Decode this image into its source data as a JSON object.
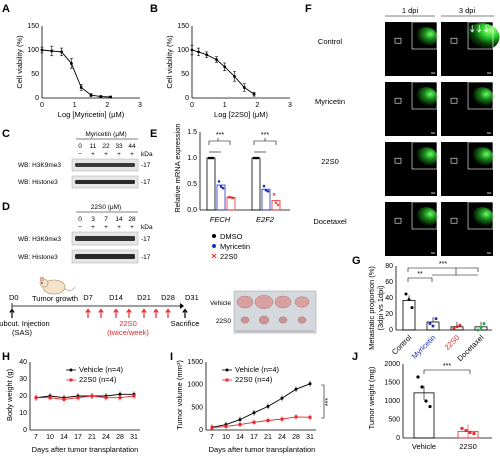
{
  "panels": {
    "A": {
      "letter": "A",
      "ylabel": "Cell viability (%)",
      "xlabel": "Log [Myricetin] (μM)",
      "yticks": [
        "0",
        "50",
        "100",
        "150"
      ],
      "xticks": [
        "0",
        "1",
        "2",
        "3"
      ]
    },
    "B": {
      "letter": "B",
      "ylabel": "Cell viability (%)",
      "xlabel": "Log [22S0] (μM)",
      "yticks": [
        "0",
        "50",
        "100",
        "150"
      ],
      "xticks": [
        "0",
        "1",
        "2",
        "3"
      ]
    },
    "C": {
      "letter": "C",
      "title": "Myricetin (μM)",
      "conc": [
        "0",
        "11",
        "22",
        "33",
        "44"
      ],
      "signs": [
        "−",
        "+",
        "+",
        "+",
        "+"
      ],
      "kda": "kDa",
      "rows": [
        "WB: H3K9me3",
        "WB: Histone3"
      ],
      "marks": [
        "-17",
        "-17"
      ]
    },
    "D": {
      "letter": "D",
      "title": "22S0 (μM)",
      "conc": [
        "0",
        "3",
        "7",
        "14",
        "28"
      ],
      "signs": [
        "−",
        "+",
        "+",
        "+",
        "+"
      ],
      "kda": "kDa",
      "rows": [
        "WB: H3K9me3",
        "WB: Histone3"
      ],
      "marks": [
        "-17",
        "-17"
      ]
    },
    "E": {
      "letter": "E",
      "ylabel": "Relative mRNA expression",
      "yticks": [
        "0.0",
        "0.5",
        "1.0",
        "1.5"
      ],
      "genes": [
        "FECH",
        "E2F2"
      ],
      "sig": [
        "***",
        "***"
      ],
      "legend": [
        "DMSO",
        "Myricetin",
        "22S0"
      ]
    },
    "F": {
      "letter": "F",
      "cols": [
        "1 dpi",
        "3 dpi"
      ],
      "rows": [
        "Control",
        "Myricetin",
        "22S0",
        "Docetaxel"
      ]
    },
    "G": {
      "letter": "G",
      "ylabel": "Metastatic proportion (%)",
      "ylabel2": "(3dpi vs 1dpi)",
      "yticks": [
        "0",
        "20",
        "40",
        "60",
        "80"
      ],
      "sig": [
        "**",
        "***"
      ]
    },
    "timeline": {
      "d0": "D0",
      "growth": "Tumor growth",
      "days": [
        "D7",
        "D14",
        "D21",
        "D28",
        "D31"
      ],
      "inject": "Subcut. Injection",
      "sas": "(SAS)",
      "drug": "22S0",
      "schedule": "(twice/week)",
      "end": "Sacrifice",
      "photo_rows": [
        "Vehicle",
        "22S0"
      ]
    },
    "H": {
      "letter": "H",
      "ylabel": "Body weight (g)",
      "xlabel": "Days after tumor transplantation",
      "yticks": [
        "0",
        "10",
        "20",
        "30",
        "40"
      ],
      "xticks": [
        "7",
        "10",
        "14",
        "17",
        "21",
        "24",
        "28",
        "31"
      ]
    },
    "I": {
      "letter": "I",
      "ylabel": "Tumor volume (mm³)",
      "xlabel": "Days after tumor transplantation",
      "yticks": [
        "0",
        "500",
        "1000",
        "1500"
      ],
      "xticks": [
        "7",
        "10",
        "14",
        "17",
        "21",
        "24",
        "28",
        "31"
      ],
      "sig": "***"
    },
    "J": {
      "letter": "J",
      "ylabel": "Tumor weight (mg)",
      "yticks": [
        "0",
        "500",
        "1000",
        "1500",
        "2000"
      ],
      "sig": "***"
    }
  },
  "colors": {
    "vehicle": "#000000",
    "drug": "#e8262b",
    "myricetin": "#1f2fb5",
    "green": "#2fd62f"
  },
  "chart_data": [
    {
      "type": "line",
      "id": "A",
      "xlabel": "Log [Myricetin] (μM)",
      "ylabel": "Cell viability (%)",
      "xlim": [
        0,
        3
      ],
      "ylim": [
        0,
        150
      ],
      "x": [
        0.0,
        0.3,
        0.6,
        0.9,
        1.2,
        1.5,
        1.8,
        2.1
      ],
      "values": [
        100,
        98,
        96,
        72,
        22,
        6,
        3,
        2
      ],
      "err": [
        6,
        10,
        8,
        10,
        6,
        3,
        2,
        2
      ]
    },
    {
      "type": "line",
      "id": "B",
      "xlabel": "Log [22S0] (μM)",
      "ylabel": "Cell viability (%)",
      "xlim": [
        0,
        3
      ],
      "ylim": [
        0,
        150
      ],
      "x": [
        0.0,
        0.2,
        0.45,
        0.75,
        1.0,
        1.3,
        1.6,
        1.9
      ],
      "values": [
        100,
        96,
        90,
        80,
        65,
        45,
        22,
        8
      ],
      "err": [
        10,
        8,
        6,
        6,
        8,
        10,
        8,
        4
      ]
    },
    {
      "type": "bar",
      "id": "E",
      "ylabel": "Relative mRNA expression",
      "ylim": [
        0,
        1.5
      ],
      "categories": [
        "FECH",
        "E2F2"
      ],
      "series": [
        {
          "name": "DMSO",
          "values": [
            1.0,
            1.0
          ],
          "points": [
            [
              1.0,
              1.0,
              1.0
            ],
            [
              1.0,
              1.0,
              1.0
            ]
          ]
        },
        {
          "name": "Myricetin",
          "values": [
            0.48,
            0.4
          ],
          "points": [
            [
              0.55,
              0.45,
              0.42
            ],
            [
              0.46,
              0.38,
              0.36
            ]
          ]
        },
        {
          "name": "22S0",
          "values": [
            0.24,
            0.18
          ],
          "points": [
            [
              0.25,
              0.24,
              0.23
            ],
            [
              0.3,
              0.14,
              0.1
            ]
          ]
        }
      ]
    },
    {
      "type": "bar",
      "id": "G",
      "ylabel": "Metastatic proportion (%)",
      "ylim": [
        0,
        80
      ],
      "categories": [
        "Control",
        "Myricetin",
        "22S0",
        "Docetaxel"
      ],
      "values": [
        37,
        10,
        4,
        4
      ],
      "points": [
        [
          45,
          38,
          28
        ],
        [
          8,
          5,
          14
        ],
        [
          2,
          4,
          6
        ],
        [
          0,
          3,
          8
        ]
      ]
    },
    {
      "type": "line",
      "id": "H",
      "xlabel": "Days after tumor transplantation",
      "ylabel": "Body weight (g)",
      "ylim": [
        0,
        40
      ],
      "categories": [
        "7",
        "10",
        "14",
        "17",
        "21",
        "24",
        "28",
        "31"
      ],
      "series": [
        {
          "name": "Vehicle (n=4)",
          "values": [
            19,
            20,
            19,
            20,
            20,
            20,
            21,
            21
          ]
        },
        {
          "name": "22S0 (n=4)",
          "values": [
            19,
            19,
            18,
            19,
            20,
            19,
            19,
            20
          ]
        }
      ]
    },
    {
      "type": "line",
      "id": "I",
      "xlabel": "Days after tumor transplantation",
      "ylabel": "Tumor volume (mm³)",
      "ylim": [
        0,
        1500
      ],
      "categories": [
        "7",
        "10",
        "14",
        "17",
        "21",
        "24",
        "28",
        "31"
      ],
      "series": [
        {
          "name": "Vehicle (n=4)",
          "values": [
            60,
            120,
            230,
            380,
            520,
            700,
            900,
            1020
          ]
        },
        {
          "name": "22S0 (n=4)",
          "values": [
            50,
            80,
            120,
            170,
            210,
            240,
            290,
            280
          ]
        }
      ]
    },
    {
      "type": "bar",
      "id": "J",
      "ylabel": "Tumor weight (mg)",
      "ylim": [
        0,
        2000
      ],
      "categories": [
        "Vehicle",
        "22S0"
      ],
      "values": [
        1220,
        180
      ],
      "points": [
        [
          1650,
          1380,
          1000,
          850
        ],
        [
          260,
          200,
          150,
          120
        ]
      ]
    }
  ]
}
